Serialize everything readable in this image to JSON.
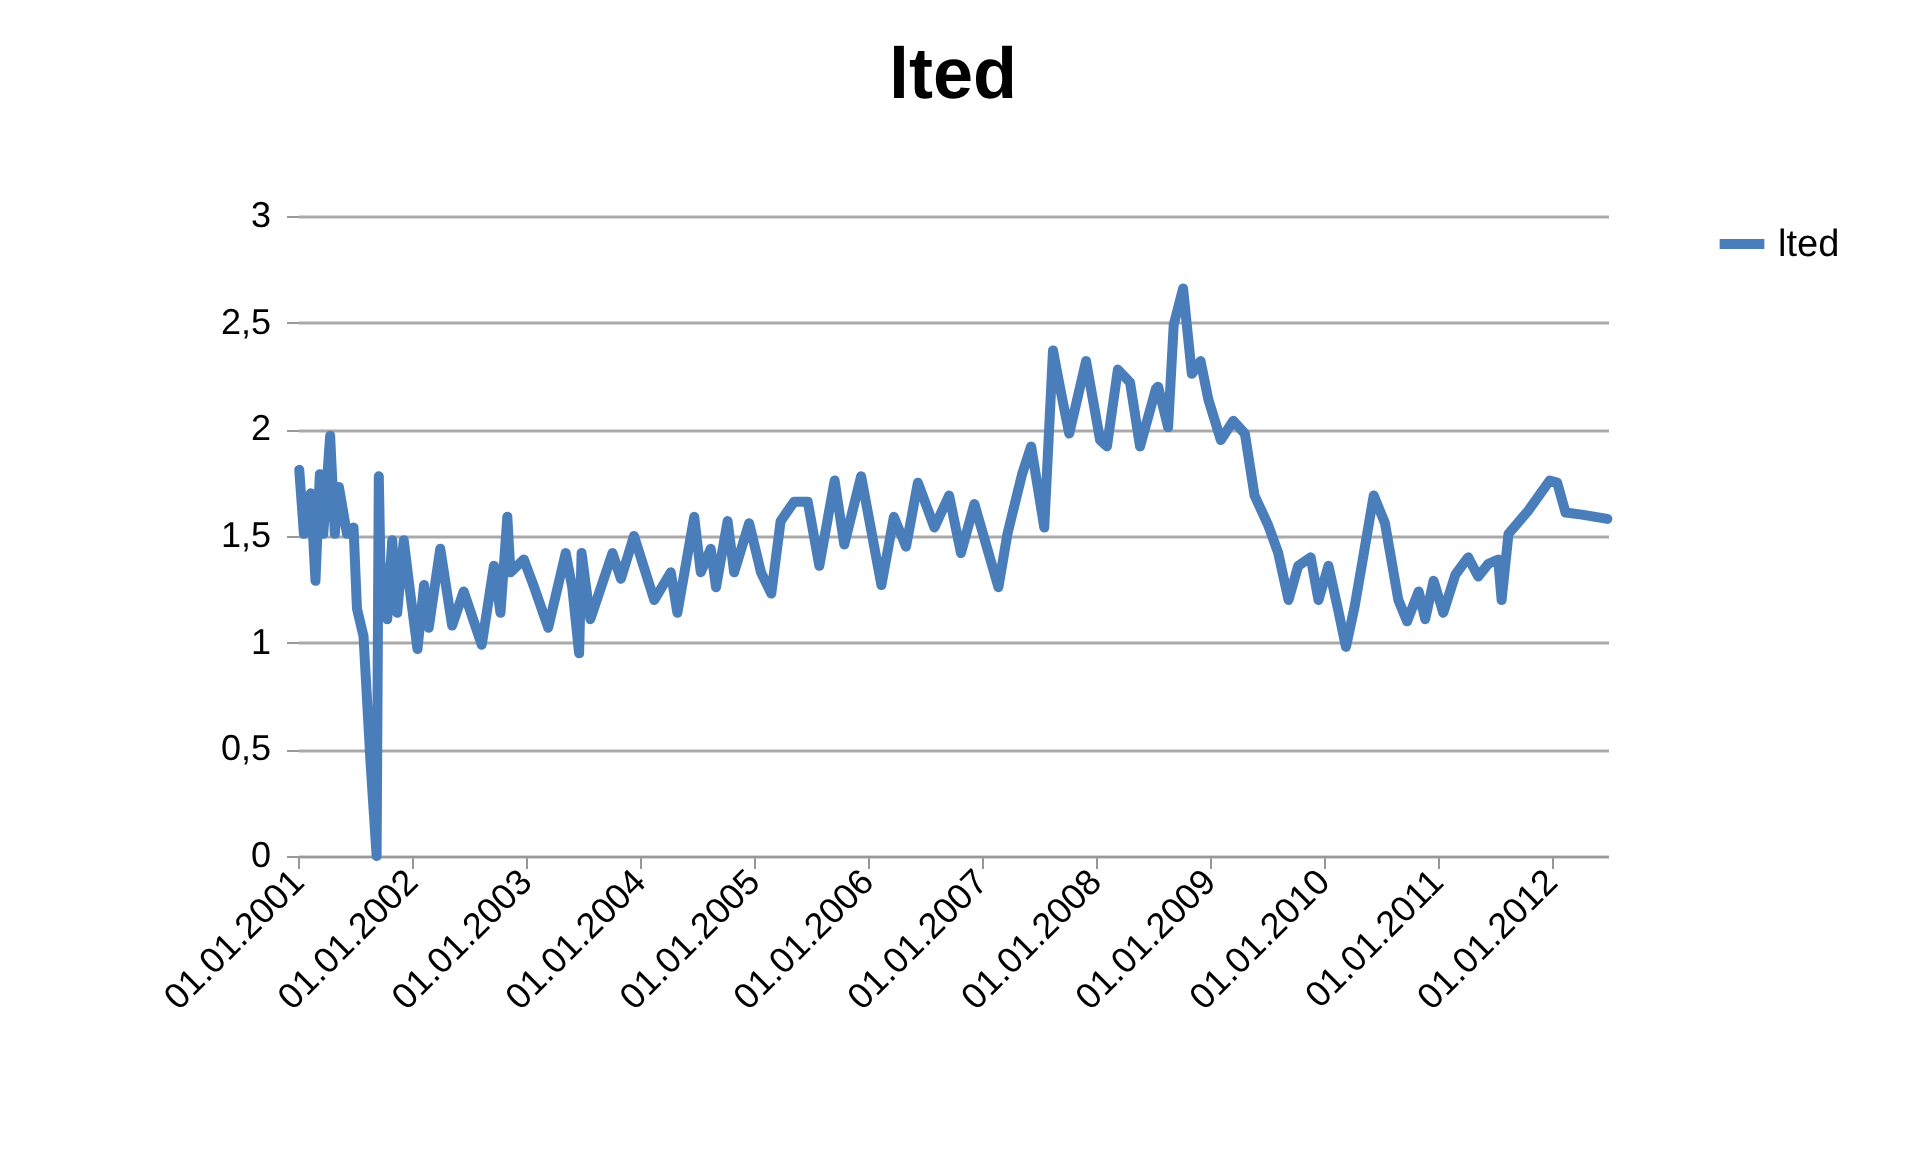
{
  "chart_data": {
    "type": "line",
    "title": "lted",
    "x": [
      "2001-01-05",
      "2001-01-20",
      "2001-02-11",
      "2001-02-26",
      "2001-03-12",
      "2001-03-23",
      "2001-04-14",
      "2001-04-29",
      "2001-05-12",
      "2001-06-07",
      "2001-06-28",
      "2001-07-09",
      "2001-07-30",
      "2001-08-21",
      "2001-09-10",
      "2001-09-17",
      "2001-09-22",
      "2001-10-14",
      "2001-10-30",
      "2001-11-15",
      "2001-12-06",
      "2001-12-27",
      "2002-01-19",
      "2002-02-09",
      "2002-02-24",
      "2002-04-02",
      "2002-05-10",
      "2002-06-16",
      "2002-08-13",
      "2002-09-21",
      "2002-10-12",
      "2002-11-03",
      "2002-11-13",
      "2002-12-26",
      "2003-01-28",
      "2003-03-14",
      "2003-05-09",
      "2003-05-30",
      "2003-06-21",
      "2003-06-29",
      "2003-07-27",
      "2003-10-06",
      "2003-11-02",
      "2003-12-14",
      "2004-02-17",
      "2004-04-10",
      "2004-05-01",
      "2004-06-24",
      "2004-07-15",
      "2004-08-16",
      "2004-09-02",
      "2004-10-09",
      "2004-10-30",
      "2004-12-17",
      "2005-01-24",
      "2005-02-26",
      "2005-03-28",
      "2005-05-10",
      "2005-06-23",
      "2005-07-30",
      "2005-09-17",
      "2005-10-18",
      "2005-12-11",
      "2006-02-14",
      "2006-03-26",
      "2006-05-04",
      "2006-06-11",
      "2006-08-03",
      "2006-09-19",
      "2006-10-27",
      "2006-12-09",
      "2007-02-24",
      "2007-03-25",
      "2007-05-11",
      "2007-06-09",
      "2007-07-21",
      "2007-08-18",
      "2007-09-13",
      "2007-10-09",
      "2007-12-02",
      "2008-01-16",
      "2008-02-07",
      "2008-03-13",
      "2008-04-21",
      "2008-05-23",
      "2008-07-13",
      "2008-07-20",
      "2008-08-21",
      "2008-09-08",
      "2008-10-08",
      "2008-11-05",
      "2008-12-03",
      "2008-12-28",
      "2009-02-06",
      "2009-03-18",
      "2009-04-24",
      "2009-05-25",
      "2009-07-08",
      "2009-08-09",
      "2009-09-11",
      "2009-10-12",
      "2009-11-21",
      "2009-12-16",
      "2010-01-17",
      "2010-02-19",
      "2010-03-14",
      "2010-04-11",
      "2010-05-07",
      "2010-06-11",
      "2010-07-17",
      "2010-08-29",
      "2010-09-26",
      "2010-11-02",
      "2010-11-23",
      "2010-12-20",
      "2011-01-20",
      "2011-02-28",
      "2011-04-10",
      "2011-05-12",
      "2011-06-14",
      "2011-07-15",
      "2011-07-26",
      "2011-08-17",
      "2011-10-20",
      "2011-12-27",
      "2012-01-20",
      "2012-02-16",
      "2012-04-08",
      "2012-06-29"
    ],
    "series": [
      {
        "name": "lted",
        "color": "#4a7ebb",
        "values": [
          1.81,
          1.51,
          1.7,
          1.29,
          1.79,
          1.51,
          1.97,
          1.51,
          1.73,
          1.51,
          1.54,
          1.16,
          1.03,
          0.45,
          0,
          1.78,
          1.38,
          1.11,
          1.48,
          1.14,
          1.48,
          1.23,
          0.97,
          1.27,
          1.07,
          1.44,
          1.08,
          1.24,
          0.99,
          1.36,
          1.14,
          1.59,
          1.33,
          1.39,
          1.26,
          1.07,
          1.42,
          1.26,
          0.95,
          1.42,
          1.11,
          1.42,
          1.3,
          1.5,
          1.2,
          1.33,
          1.14,
          1.59,
          1.33,
          1.44,
          1.26,
          1.57,
          1.33,
          1.56,
          1.33,
          1.23,
          1.57,
          1.66,
          1.66,
          1.36,
          1.76,
          1.46,
          1.78,
          1.27,
          1.59,
          1.45,
          1.75,
          1.54,
          1.69,
          1.42,
          1.65,
          1.26,
          1.51,
          1.79,
          1.92,
          1.54,
          2.37,
          2.17,
          1.98,
          2.32,
          1.95,
          1.92,
          2.28,
          2.22,
          1.92,
          2.19,
          2.2,
          2.01,
          2.49,
          2.66,
          2.26,
          2.32,
          2.14,
          1.95,
          2.04,
          1.98,
          1.69,
          1.55,
          1.42,
          1.2,
          1.36,
          1.4,
          1.2,
          1.36,
          1.14,
          0.98,
          1.17,
          1.39,
          1.69,
          1.56,
          1.2,
          1.1,
          1.24,
          1.11,
          1.29,
          1.14,
          1.32,
          1.4,
          1.31,
          1.37,
          1.39,
          1.2,
          1.51,
          1.62,
          1.76,
          1.75,
          1.61,
          1.6,
          1.58
        ]
      }
    ],
    "xlim": [
      "2001-01-01",
      "2012-07-01"
    ],
    "xticks": [
      {
        "value": "2001-01-01",
        "label": "01.01.2001"
      },
      {
        "value": "2002-01-01",
        "label": "01.01.2002"
      },
      {
        "value": "2003-01-01",
        "label": "01.01.2003"
      },
      {
        "value": "2004-01-01",
        "label": "01.01.2004"
      },
      {
        "value": "2005-01-01",
        "label": "01.01.2005"
      },
      {
        "value": "2006-01-01",
        "label": "01.01.2006"
      },
      {
        "value": "2007-01-01",
        "label": "01.01.2007"
      },
      {
        "value": "2008-01-01",
        "label": "01.01.2008"
      },
      {
        "value": "2009-01-01",
        "label": "01.01.2009"
      },
      {
        "value": "2010-01-01",
        "label": "01.01.2010"
      },
      {
        "value": "2011-01-01",
        "label": "01.01.2011"
      },
      {
        "value": "2012-01-01",
        "label": "01.01.2012"
      }
    ],
    "ylim": [
      0,
      3
    ],
    "yticks": [
      0,
      {
        "value": 0.5,
        "label": "0,5"
      },
      1,
      {
        "value": 1.5,
        "label": "1,5"
      },
      2,
      {
        "value": 2.5,
        "label": "2,5"
      },
      3
    ],
    "grid": "y",
    "legend": "right",
    "marker": "none",
    "line_style": "solid"
  }
}
